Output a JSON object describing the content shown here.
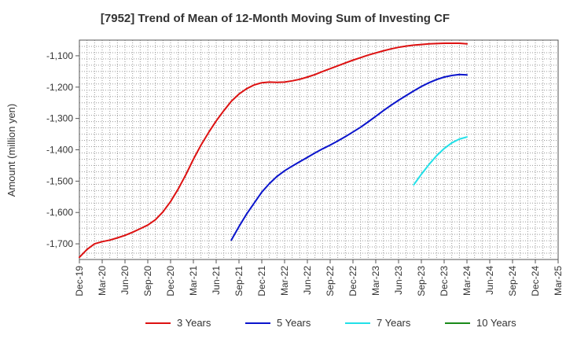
{
  "chart_data": {
    "type": "line",
    "title": "[7952]  Trend of Mean of 12-Month Moving Sum of Investing CF",
    "ylabel": "Amount (million yen)",
    "xlabel": "",
    "ylim": [
      -1750,
      -1050
    ],
    "yticks": [
      -1100,
      -1200,
      -1300,
      -1400,
      -1500,
      -1600,
      -1700
    ],
    "ytick_labels": [
      "-1,100",
      "-1,200",
      "-1,300",
      "-1,400",
      "-1,500",
      "-1,600",
      "-1,700"
    ],
    "xlim": [
      "2019-12",
      "2025-03"
    ],
    "xticks": [
      "2019-12",
      "2020-03",
      "2020-06",
      "2020-09",
      "2020-12",
      "2021-03",
      "2021-06",
      "2021-09",
      "2021-12",
      "2022-03",
      "2022-06",
      "2022-09",
      "2022-12",
      "2023-03",
      "2023-06",
      "2023-09",
      "2023-12",
      "2024-03",
      "2024-06",
      "2024-09",
      "2024-12",
      "2025-03"
    ],
    "xtick_labels": [
      "Dec-19",
      "Mar-20",
      "Jun-20",
      "Sep-20",
      "Dec-20",
      "Mar-21",
      "Jun-21",
      "Sep-21",
      "Dec-21",
      "Mar-22",
      "Jun-22",
      "Sep-22",
      "Dec-22",
      "Mar-23",
      "Jun-23",
      "Sep-23",
      "Dec-23",
      "Mar-24",
      "Jun-24",
      "Sep-24",
      "Dec-24",
      "Mar-25"
    ],
    "grid": true,
    "legend_position": "bottom",
    "series": [
      {
        "name": "3 Years",
        "color": "#dd1111",
        "points": [
          [
            "2019-12",
            -1743
          ],
          [
            "2020-01",
            -1718
          ],
          [
            "2020-02",
            -1700
          ],
          [
            "2020-03",
            -1693
          ],
          [
            "2020-04",
            -1688
          ],
          [
            "2020-05",
            -1681
          ],
          [
            "2020-06",
            -1673
          ],
          [
            "2020-07",
            -1663
          ],
          [
            "2020-08",
            -1652
          ],
          [
            "2020-09",
            -1640
          ],
          [
            "2020-10",
            -1623
          ],
          [
            "2020-11",
            -1598
          ],
          [
            "2020-12",
            -1565
          ],
          [
            "2021-01",
            -1525
          ],
          [
            "2021-02",
            -1480
          ],
          [
            "2021-03",
            -1430
          ],
          [
            "2021-04",
            -1385
          ],
          [
            "2021-05",
            -1345
          ],
          [
            "2021-06",
            -1308
          ],
          [
            "2021-07",
            -1275
          ],
          [
            "2021-08",
            -1245
          ],
          [
            "2021-09",
            -1222
          ],
          [
            "2021-10",
            -1205
          ],
          [
            "2021-11",
            -1193
          ],
          [
            "2021-12",
            -1186
          ],
          [
            "2022-01",
            -1184
          ],
          [
            "2022-02",
            -1185
          ],
          [
            "2022-03",
            -1184
          ],
          [
            "2022-04",
            -1180
          ],
          [
            "2022-05",
            -1175
          ],
          [
            "2022-06",
            -1168
          ],
          [
            "2022-07",
            -1160
          ],
          [
            "2022-08",
            -1150
          ],
          [
            "2022-09",
            -1141
          ],
          [
            "2022-10",
            -1132
          ],
          [
            "2022-11",
            -1123
          ],
          [
            "2022-12",
            -1114
          ],
          [
            "2023-01",
            -1106
          ],
          [
            "2023-02",
            -1098
          ],
          [
            "2023-03",
            -1091
          ],
          [
            "2023-04",
            -1084
          ],
          [
            "2023-05",
            -1078
          ],
          [
            "2023-06",
            -1073
          ],
          [
            "2023-07",
            -1069
          ],
          [
            "2023-08",
            -1066
          ],
          [
            "2023-09",
            -1064
          ],
          [
            "2023-10",
            -1062
          ],
          [
            "2023-11",
            -1061
          ],
          [
            "2023-12",
            -1060
          ],
          [
            "2024-01",
            -1060
          ],
          [
            "2024-02",
            -1060
          ],
          [
            "2024-03",
            -1062
          ]
        ]
      },
      {
        "name": "5 Years",
        "color": "#0a14cc",
        "points": [
          [
            "2021-08",
            -1688
          ],
          [
            "2021-09",
            -1645
          ],
          [
            "2021-10",
            -1605
          ],
          [
            "2021-11",
            -1570
          ],
          [
            "2021-12",
            -1535
          ],
          [
            "2022-01",
            -1508
          ],
          [
            "2022-02",
            -1485
          ],
          [
            "2022-03",
            -1467
          ],
          [
            "2022-04",
            -1452
          ],
          [
            "2022-05",
            -1438
          ],
          [
            "2022-06",
            -1424
          ],
          [
            "2022-07",
            -1410
          ],
          [
            "2022-08",
            -1397
          ],
          [
            "2022-09",
            -1385
          ],
          [
            "2022-10",
            -1372
          ],
          [
            "2022-11",
            -1358
          ],
          [
            "2022-12",
            -1343
          ],
          [
            "2023-01",
            -1328
          ],
          [
            "2023-02",
            -1311
          ],
          [
            "2023-03",
            -1293
          ],
          [
            "2023-04",
            -1275
          ],
          [
            "2023-05",
            -1258
          ],
          [
            "2023-06",
            -1242
          ],
          [
            "2023-07",
            -1227
          ],
          [
            "2023-08",
            -1212
          ],
          [
            "2023-09",
            -1198
          ],
          [
            "2023-10",
            -1186
          ],
          [
            "2023-11",
            -1176
          ],
          [
            "2023-12",
            -1168
          ],
          [
            "2024-01",
            -1163
          ],
          [
            "2024-02",
            -1160
          ],
          [
            "2024-03",
            -1161
          ]
        ]
      },
      {
        "name": "7 Years",
        "color": "#22e0e8",
        "points": [
          [
            "2023-08",
            -1512
          ],
          [
            "2023-09",
            -1478
          ],
          [
            "2023-10",
            -1447
          ],
          [
            "2023-11",
            -1419
          ],
          [
            "2023-12",
            -1396
          ],
          [
            "2024-01",
            -1378
          ],
          [
            "2024-02",
            -1366
          ],
          [
            "2024-03",
            -1359
          ]
        ]
      },
      {
        "name": "10 Years",
        "color": "#1a8a1a",
        "points": []
      }
    ]
  }
}
